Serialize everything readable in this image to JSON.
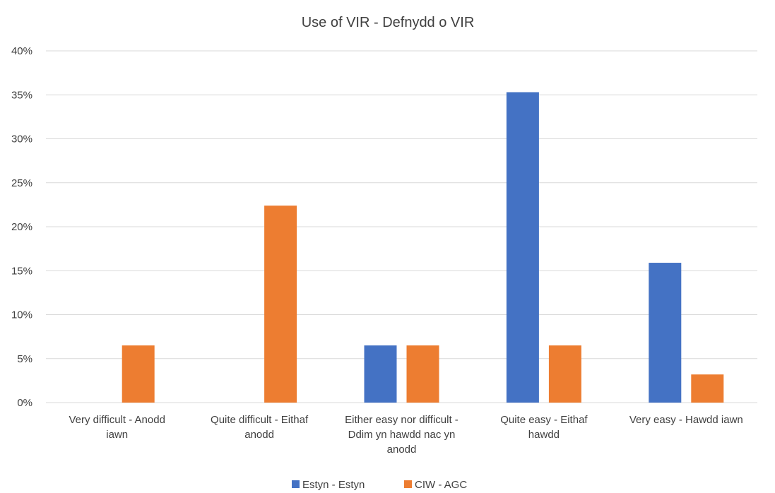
{
  "chart_data": {
    "type": "bar",
    "title": "Use of VIR - Defnydd o VIR",
    "xlabel": "",
    "ylabel": "",
    "ylim": [
      0,
      40
    ],
    "y_ticks": [
      0,
      5,
      10,
      15,
      20,
      25,
      30,
      35,
      40
    ],
    "y_tick_labels": [
      "0%",
      "5%",
      "10%",
      "15%",
      "20%",
      "25%",
      "30%",
      "35%",
      "40%"
    ],
    "grid": true,
    "legend_position": "bottom",
    "categories": [
      [
        "Very difficult - Anodd",
        "iawn"
      ],
      [
        "Quite difficult - Eithaf",
        "anodd"
      ],
      [
        "Either easy nor difficult -",
        "Ddim yn hawdd nac yn",
        "anodd"
      ],
      [
        "Quite easy - Eithaf",
        "hawdd"
      ],
      [
        "Very easy - Hawdd iawn"
      ]
    ],
    "series": [
      {
        "name": "Estyn - Estyn",
        "color": "#4472C4",
        "values": [
          0,
          0,
          6.5,
          35.3,
          15.9
        ]
      },
      {
        "name": "CIW - AGC",
        "color": "#ED7D31",
        "values": [
          6.5,
          22.4,
          6.5,
          6.5,
          3.2
        ]
      }
    ]
  }
}
